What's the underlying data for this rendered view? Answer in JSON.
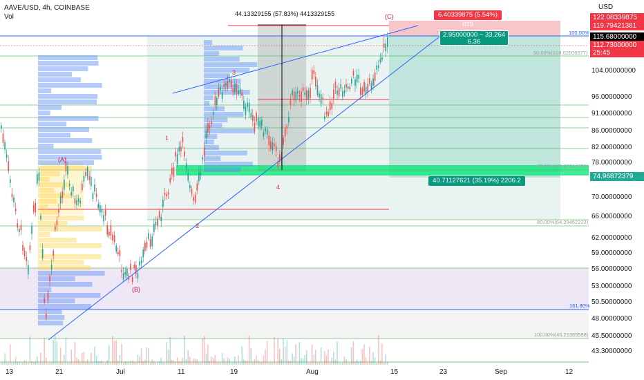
{
  "header": {
    "symbol": "AAVE/USD, 4h, COINBASE",
    "vol": "Vol"
  },
  "price_axis": {
    "currency": "USD",
    "labels": [
      "104.00000000",
      "96.00000000",
      "91.00000000",
      "86.00000000",
      "82.00000000",
      "78.00000000",
      "70.00000000",
      "66.00000000",
      "62.00000000",
      "59.00000000",
      "56.00000000",
      "53.00000000",
      "50.50000000",
      "48.00000000",
      "45.50000000",
      "43.30000000"
    ]
  },
  "price_tags": [
    {
      "text": "122.08339875",
      "color": "#f23645",
      "text_color": "#ffffff"
    },
    {
      "text": "119.79421381",
      "color": "#f23645",
      "text_color": "#ffffff"
    },
    {
      "text": "115.68000000",
      "color": "#000000",
      "text_color": "#ffffff"
    },
    {
      "text": "112.73000000",
      "color": "#f23645",
      "text_color": "#ffffff"
    },
    {
      "text": "25:45",
      "color": "#f23645",
      "text_color": "#ffffff"
    },
    {
      "text": "74.96872379",
      "color": "#22ab94",
      "text_color": "#ffffff"
    }
  ],
  "time_axis": [
    "13",
    "21",
    "Jul",
    "11",
    "19",
    "Aug",
    "15",
    "23",
    "Sep",
    "12"
  ],
  "annotations": {
    "measure_top": "44.13329155 (57.83%) 4413329155",
    "red_box": "6.40339875 (5.54%) 639",
    "green_box_line1": "2.95000000 − 33.264",
    "green_box_line2": "6.36",
    "bottom_box": "40.71127621 (35.19%) 2206.2",
    "fib_100_top": "100.00%",
    "fib_50": "50.00%(109.02606677)",
    "fib_78": "78.60%(76.87314756)",
    "fib_80": "80.00%(64.29452223)",
    "fib_161": "161.80%",
    "fib_100_bottom": "100.00%(45.21365598)",
    "wave_1": "1",
    "wave_2": "2",
    "wave_3": "3",
    "wave_4": "4",
    "wave_A": "(A)",
    "wave_B": "(B)",
    "wave_C": "(C)"
  },
  "colors": {
    "up": "#26a69a",
    "down": "#ef5350",
    "trend": "#2962ff",
    "zone_green": "#00e676",
    "red_tag": "#f23645"
  }
}
